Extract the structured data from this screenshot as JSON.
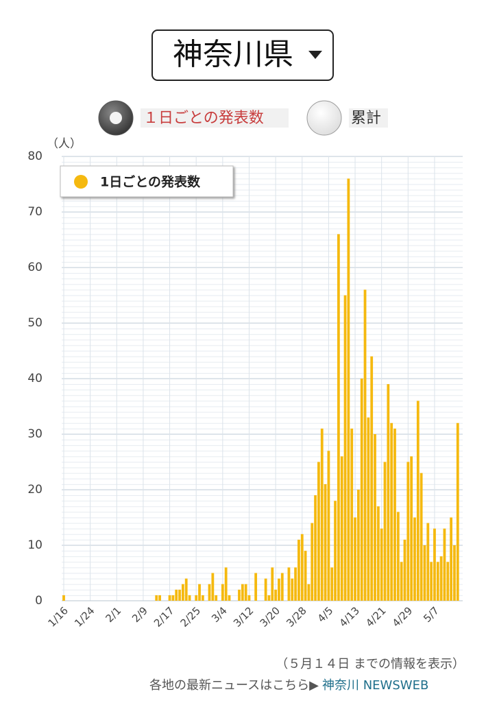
{
  "dropdown": "神奈川県",
  "radio_options": [
    "１日ごとの発表数",
    "累計"
  ],
  "footer": {
    "note": "（５月１４日 までの情報を表示）",
    "link_prefix": "各地の最新ニュースはこちら▶",
    "link": "神奈川 NEWSWEB"
  },
  "chart_data": {
    "type": "bar",
    "y_unit": "（人）",
    "categories": [
      "1/16",
      null,
      null,
      null,
      null,
      null,
      null,
      null,
      "1/24",
      null,
      null,
      null,
      null,
      null,
      null,
      null,
      "2/1",
      null,
      null,
      null,
      null,
      null,
      null,
      null,
      "2/9",
      null,
      null,
      null,
      null,
      null,
      null,
      null,
      "2/17",
      null,
      null,
      null,
      null,
      null,
      null,
      null,
      "2/25",
      null,
      null,
      null,
      null,
      null,
      null,
      null,
      "3/4",
      null,
      null,
      null,
      null,
      null,
      null,
      null,
      "3/12",
      null,
      null,
      null,
      null,
      null,
      null,
      null,
      "3/20",
      null,
      null,
      null,
      null,
      null,
      null,
      null,
      "3/28",
      null,
      null,
      null,
      null,
      null,
      null,
      null,
      "4/5",
      null,
      null,
      null,
      null,
      null,
      null,
      null,
      "4/13",
      null,
      null,
      null,
      null,
      null,
      null,
      null,
      "4/21",
      null,
      null,
      null,
      null,
      null,
      null,
      null,
      "4/29",
      null,
      null,
      null,
      null,
      null,
      null,
      null,
      "5/7",
      null,
      null,
      null,
      null,
      null,
      null,
      null
    ],
    "series": [
      {
        "name": "1日ごとの発表数",
        "color": "#f5b90f",
        "values": [
          1,
          0,
          0,
          0,
          0,
          0,
          0,
          0,
          0,
          0,
          0,
          0,
          0,
          0,
          0,
          0,
          0,
          0,
          0,
          0,
          0,
          0,
          0,
          0,
          0,
          0,
          0,
          0,
          1,
          1,
          0,
          0,
          1,
          1,
          2,
          2,
          3,
          4,
          1,
          0,
          1,
          3,
          1,
          0,
          3,
          5,
          1,
          0,
          3,
          6,
          1,
          0,
          0,
          2,
          3,
          3,
          1,
          0,
          5,
          0,
          0,
          4,
          1,
          6,
          2,
          4,
          5,
          0,
          6,
          4,
          6,
          11,
          12,
          9,
          3,
          14,
          19,
          25,
          31,
          21,
          27,
          6,
          18,
          66,
          26,
          55,
          76,
          31,
          15,
          20,
          40,
          56,
          33,
          44,
          30,
          17,
          13,
          25,
          39,
          32,
          31,
          16,
          7,
          11,
          25,
          26,
          15,
          36,
          23,
          10,
          14,
          7,
          13,
          7,
          8,
          13,
          7,
          15,
          10,
          32
        ]
      }
    ],
    "ylim": [
      0,
      80
    ],
    "yticks": [
      0,
      10,
      20,
      30,
      40,
      50,
      60,
      70,
      80
    ],
    "grid": true,
    "legend": "top-left"
  }
}
